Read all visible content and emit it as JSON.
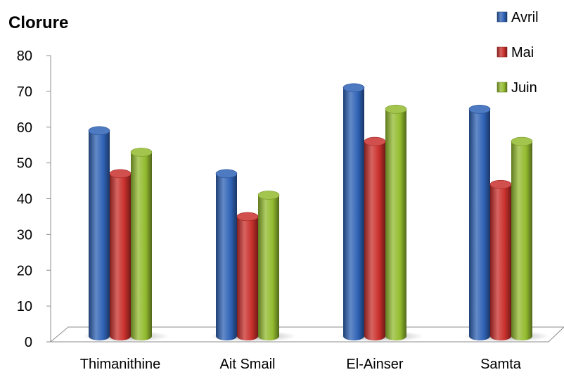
{
  "chart_data": {
    "type": "bar",
    "style": "3d-cylinder",
    "title": "Clorure",
    "xlabel": "",
    "ylabel": "",
    "categories": [
      "Thimanithine",
      "Ait Smail",
      "El-Ainser",
      "Samta"
    ],
    "series": [
      {
        "name": "Avril",
        "color": "#2f63b6",
        "values": [
          59,
          47,
          71,
          65
        ]
      },
      {
        "name": "Mai",
        "color": "#c9302c",
        "values": [
          47,
          35,
          56,
          44
        ]
      },
      {
        "name": "Juin",
        "color": "#93bb2f",
        "values": [
          53,
          41,
          65,
          56
        ]
      }
    ],
    "ylim": [
      0,
      80
    ],
    "yticks": [
      0,
      10,
      20,
      30,
      40,
      50,
      60,
      70,
      80
    ],
    "grid": false,
    "legend_position": "top-right"
  }
}
